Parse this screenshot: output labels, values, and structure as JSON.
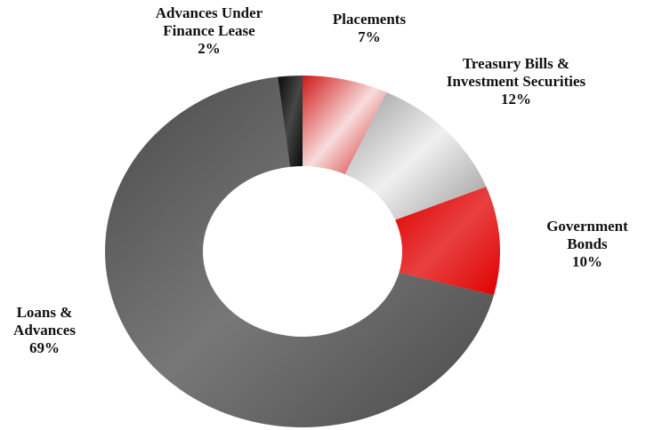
{
  "chart_data": {
    "type": "donut",
    "categories": [
      "Placements",
      "Treasury Bills & Investment Securities",
      "Government Bonds",
      "Loans & Advances",
      "Advances Under Finance Lease"
    ],
    "values": [
      7,
      12,
      10,
      69,
      2
    ],
    "value_labels": [
      "7%",
      "12%",
      "10%",
      "69%",
      "2%"
    ],
    "colors": [
      "#d01818",
      "#9a9a9a",
      "#e00000",
      "#4a4a4a",
      "#0a0a0a"
    ]
  }
}
